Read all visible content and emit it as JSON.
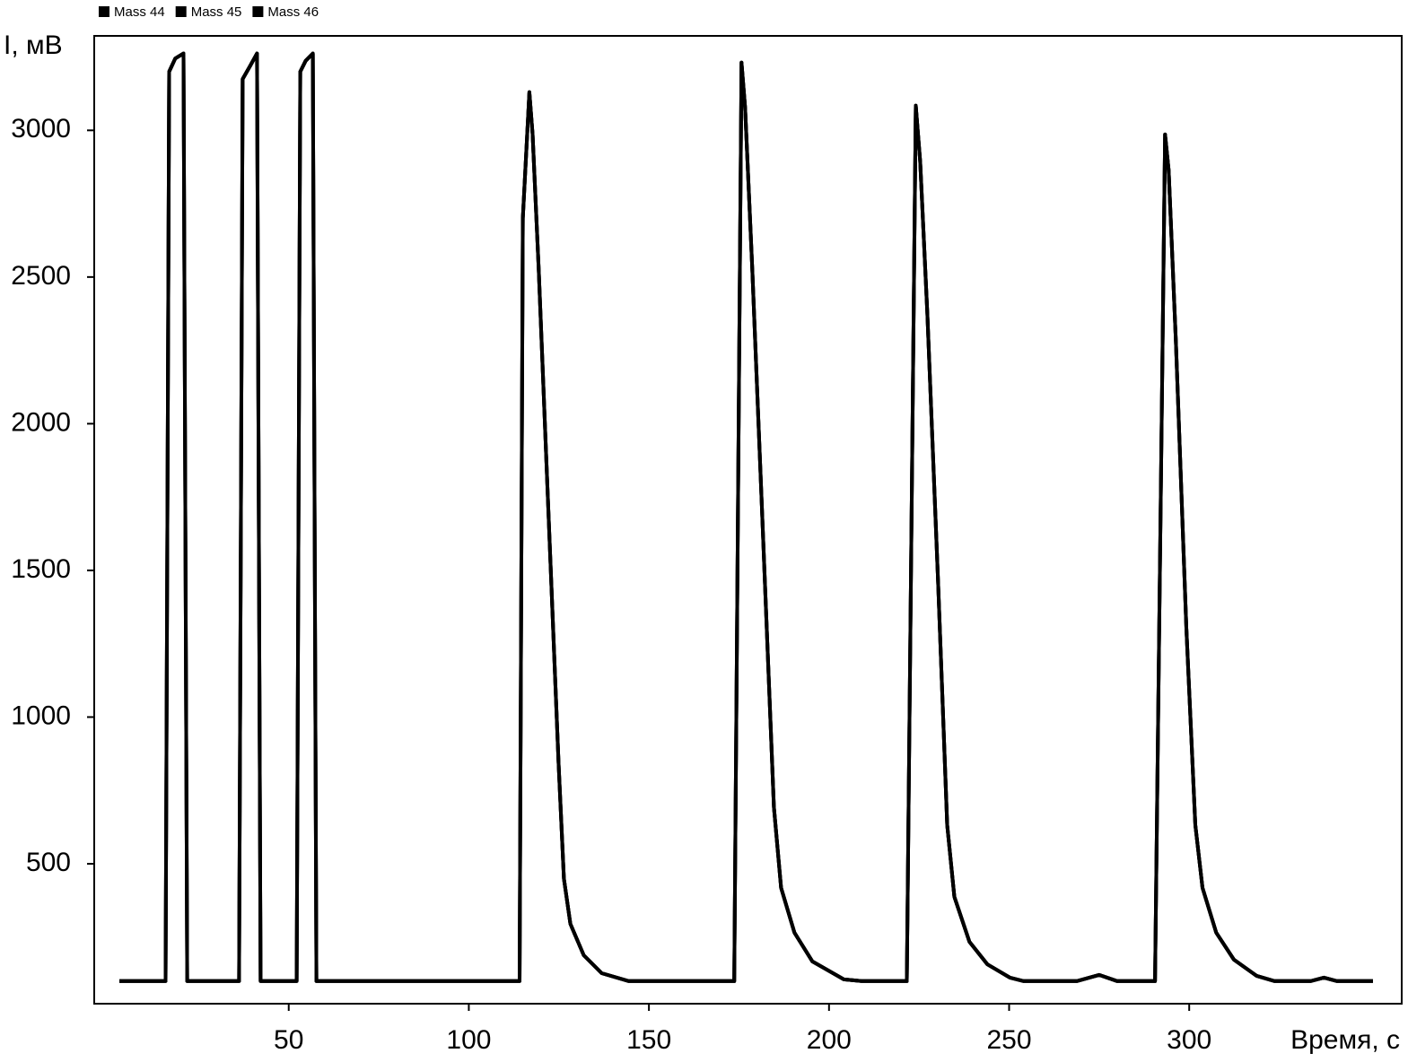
{
  "chart_data": {
    "type": "line",
    "x_label": "Время, с",
    "y_label": "I, мВ",
    "x": [
      3,
      15.8,
      16.8,
      18.5,
      20.8,
      21.8,
      36.2,
      37.2,
      39.3,
      41.2,
      42.2,
      52.2,
      53.2,
      54.7,
      56.7,
      57.7,
      114.1,
      115.0,
      116.8,
      117.7,
      119.4,
      121.9,
      124.9,
      126.4,
      128.2,
      131.9,
      136.9,
      144.4,
      173.7,
      175.7,
      176.7,
      178.7,
      181.7,
      184.7,
      186.7,
      190.4,
      195.4,
      204.1,
      209,
      221.6,
      224.1,
      225.3,
      227.3,
      230.3,
      232.8,
      234.8,
      239,
      244,
      250.2,
      254,
      268.8,
      275,
      280,
      290.5,
      293.3,
      294.3,
      296.3,
      299.2,
      301.7,
      303.7,
      307.5,
      312.4,
      318.7,
      323.7,
      333.7,
      337.4,
      341,
      351
    ],
    "series": [
      {
        "name": "Mass 44",
        "color": "#000000",
        "values": [
          100,
          100,
          3200,
          3245,
          3262,
          100,
          100,
          3175,
          3220,
          3262,
          100,
          100,
          3200,
          3237,
          3262,
          100,
          100,
          2700,
          3130,
          2987,
          2527,
          1763,
          846,
          449,
          295,
          188,
          127,
          100,
          100,
          3231,
          3078,
          2527,
          1610,
          693,
          418,
          265,
          167,
          106,
          100,
          100,
          3084,
          2894,
          2374,
          1457,
          632,
          387,
          234,
          157,
          112,
          100,
          100,
          121,
          100,
          100,
          2986,
          2864,
          2283,
          1304,
          632,
          418,
          265,
          173,
          118,
          100,
          100,
          112,
          100,
          100
        ]
      },
      {
        "name": "Mass 45",
        "color": "#000000",
        "values": [
          100,
          100,
          3200,
          3245,
          3262,
          100,
          100,
          3175,
          3220,
          3262,
          100,
          100,
          3200,
          3237,
          3262,
          100,
          100,
          2700,
          3130,
          2987,
          2527,
          1763,
          846,
          449,
          295,
          188,
          127,
          100,
          100,
          3231,
          3078,
          2527,
          1610,
          693,
          418,
          265,
          167,
          106,
          100,
          100,
          3084,
          2894,
          2374,
          1457,
          632,
          387,
          234,
          157,
          112,
          100,
          100,
          121,
          100,
          100,
          2986,
          2864,
          2283,
          1304,
          632,
          418,
          265,
          173,
          118,
          100,
          100,
          112,
          100,
          100
        ]
      },
      {
        "name": "Mass 46",
        "color": "#000000",
        "values": [
          100,
          100,
          3200,
          3245,
          3262,
          100,
          100,
          3175,
          3220,
          3262,
          100,
          100,
          3200,
          3237,
          3262,
          100,
          100,
          2700,
          3130,
          2987,
          2527,
          1763,
          846,
          449,
          295,
          188,
          127,
          100,
          100,
          3231,
          3078,
          2527,
          1610,
          693,
          418,
          265,
          167,
          106,
          100,
          100,
          3084,
          2894,
          2374,
          1457,
          632,
          387,
          234,
          157,
          112,
          100,
          100,
          121,
          100,
          100,
          2986,
          2864,
          2283,
          1304,
          632,
          418,
          265,
          173,
          118,
          100,
          100,
          112,
          100,
          100
        ]
      }
    ],
    "xlim": [
      -4,
      359
    ],
    "xticks": [
      50,
      100,
      150,
      200,
      250,
      300
    ],
    "ylim": [
      23,
      3322
    ],
    "yticks": [
      500,
      1000,
      1500,
      2000,
      2500,
      3000
    ],
    "grid": false
  }
}
